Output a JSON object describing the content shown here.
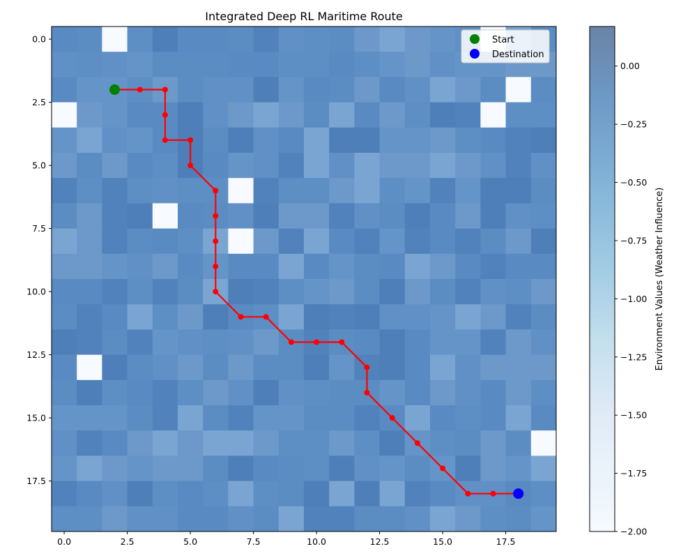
{
  "chart_data": {
    "type": "heatmap",
    "title": "Integrated Deep RL Maritime Route",
    "grid_size": 20,
    "xlim": [
      -0.5,
      19.5
    ],
    "ylim": [
      19.5,
      -0.5
    ],
    "x_ticks": [
      0.0,
      2.5,
      5.0,
      7.5,
      10.0,
      12.5,
      15.0,
      17.5
    ],
    "y_ticks": [
      0.0,
      2.5,
      5.0,
      7.5,
      10.0,
      12.5,
      15.0,
      17.5
    ],
    "x_tick_labels": [
      "0.0",
      "2.5",
      "5.0",
      "7.5",
      "10.0",
      "12.5",
      "15.0",
      "17.5"
    ],
    "y_tick_labels": [
      "0.0",
      "2.5",
      "5.0",
      "7.5",
      "10.0",
      "12.5",
      "15.0",
      "17.5"
    ],
    "colorbar": {
      "label": "Environment Values (Weather Influence)",
      "range": [
        -2.0,
        0.17
      ],
      "ticks": [
        0.0,
        -0.25,
        -0.5,
        -0.75,
        -1.0,
        -1.25,
        -1.5,
        -1.75,
        -2.0
      ],
      "tick_labels": [
        "0.00",
        "−0.25",
        "−0.50",
        "−0.75",
        "−1.00",
        "−1.25",
        "−1.50",
        "−1.75",
        "−2.00"
      ],
      "colors": [
        "#f7fbff",
        "#deebf7",
        "#c6dbef",
        "#9ecae1",
        "#6baed6",
        "#4292c6",
        "#2171b5",
        "#08519c",
        "#08306b"
      ],
      "alpha": 0.6
    },
    "obstacles": [
      [
        2,
        0
      ],
      [
        17,
        0
      ],
      [
        18,
        2
      ],
      [
        0,
        3
      ],
      [
        17,
        3
      ],
      [
        7,
        6
      ],
      [
        4,
        7
      ],
      [
        7,
        8
      ],
      [
        1,
        13
      ],
      [
        19,
        16
      ]
    ],
    "route": [
      [
        2,
        2
      ],
      [
        3,
        2
      ],
      [
        4,
        2
      ],
      [
        4,
        3
      ],
      [
        4,
        4
      ],
      [
        5,
        4
      ],
      [
        5,
        5
      ],
      [
        6,
        6
      ],
      [
        6,
        7
      ],
      [
        6,
        8
      ],
      [
        6,
        9
      ],
      [
        6,
        10
      ],
      [
        7,
        11
      ],
      [
        8,
        11
      ],
      [
        9,
        12
      ],
      [
        10,
        12
      ],
      [
        11,
        12
      ],
      [
        12,
        13
      ],
      [
        12,
        14
      ],
      [
        13,
        15
      ],
      [
        14,
        16
      ],
      [
        15,
        17
      ],
      [
        16,
        18
      ],
      [
        17,
        18
      ],
      [
        18,
        18
      ]
    ],
    "route_color": "#ff0000",
    "start": [
      2,
      2
    ],
    "destination": [
      18,
      18
    ],
    "legend": {
      "position": "upper right",
      "entries": [
        {
          "label": "Start",
          "color": "#008000"
        },
        {
          "label": "Destination",
          "color": "#0000ff"
        }
      ]
    }
  }
}
